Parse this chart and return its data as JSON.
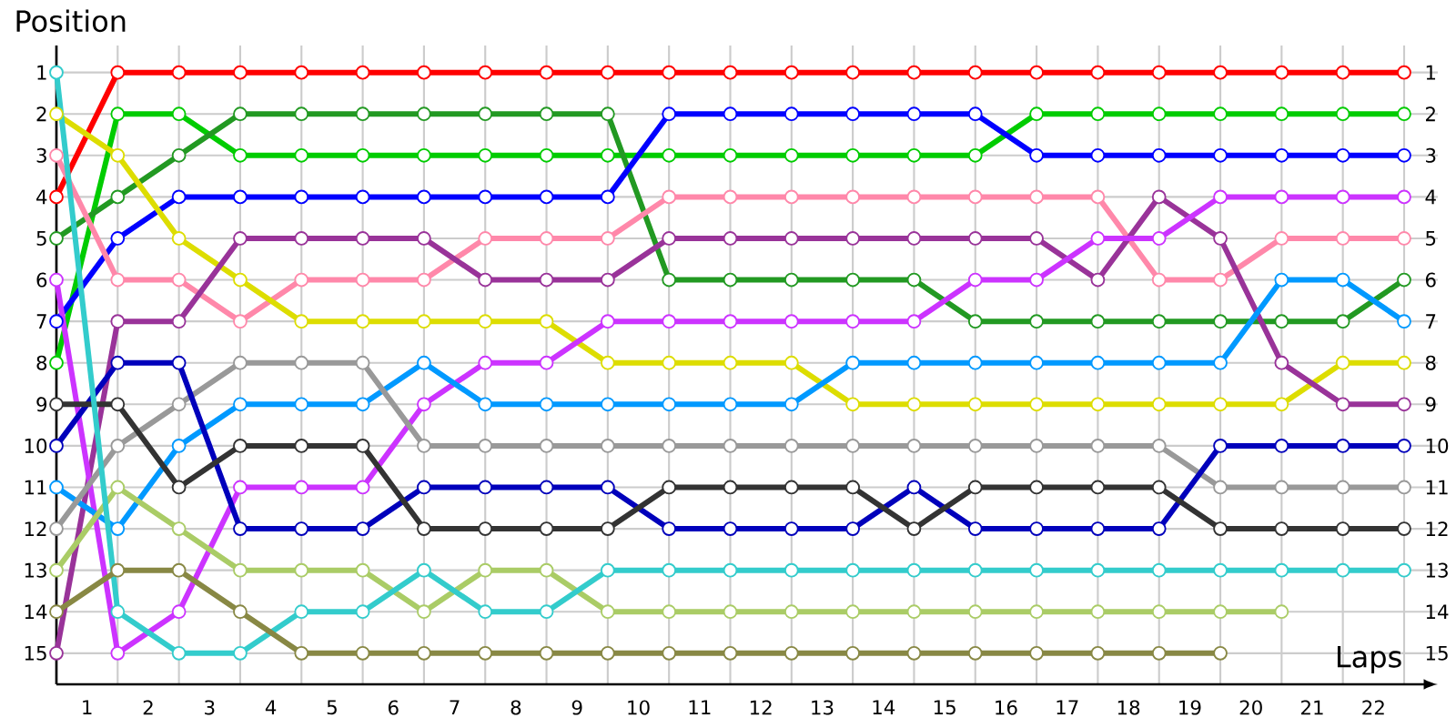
{
  "chart_data": {
    "type": "line",
    "xlabel": "Laps",
    "ylabel": "Position",
    "x": [
      0,
      1,
      2,
      3,
      4,
      5,
      6,
      7,
      8,
      9,
      10,
      11,
      12,
      13,
      14,
      15,
      16,
      17,
      18,
      19,
      20,
      21,
      22
    ],
    "xlim": [
      0,
      22.55
    ],
    "ylim": [
      15.75,
      0.35
    ],
    "y2lim": [
      15.75,
      0.35
    ],
    "xticks": [
      {
        "value": 0.5,
        "label": "1"
      },
      {
        "value": 1.5,
        "label": "2"
      },
      {
        "value": 2.5,
        "label": "3"
      },
      {
        "value": 3.5,
        "label": "4"
      },
      {
        "value": 4.5,
        "label": "5"
      },
      {
        "value": 5.5,
        "label": "6"
      },
      {
        "value": 6.5,
        "label": "7"
      },
      {
        "value": 7.5,
        "label": "8"
      },
      {
        "value": 8.5,
        "label": "9"
      },
      {
        "value": 9.5,
        "label": "10"
      },
      {
        "value": 10.5,
        "label": "11"
      },
      {
        "value": 11.5,
        "label": "12"
      },
      {
        "value": 12.5,
        "label": "13"
      },
      {
        "value": 13.5,
        "label": "14"
      },
      {
        "value": 14.5,
        "label": "15"
      },
      {
        "value": 15.5,
        "label": "16"
      },
      {
        "value": 16.5,
        "label": "17"
      },
      {
        "value": 17.5,
        "label": "18"
      },
      {
        "value": 18.5,
        "label": "19"
      },
      {
        "value": 19.5,
        "label": "20"
      },
      {
        "value": 20.5,
        "label": "21"
      },
      {
        "value": 21.5,
        "label": "22"
      },
      {
        "value": 1,
        "label": null
      },
      {
        "value": 2,
        "label": null
      },
      {
        "value": 3,
        "label": null
      },
      {
        "value": 4,
        "label": null
      },
      {
        "value": 5,
        "label": null
      },
      {
        "value": 6,
        "label": null
      },
      {
        "value": 7,
        "label": null
      },
      {
        "value": 8,
        "label": null
      },
      {
        "value": 9,
        "label": null
      },
      {
        "value": 10,
        "label": null
      },
      {
        "value": 11,
        "label": null
      },
      {
        "value": 12,
        "label": null
      },
      {
        "value": 13,
        "label": null
      },
      {
        "value": 14,
        "label": null
      },
      {
        "value": 15,
        "label": null
      },
      {
        "value": 16,
        "label": null
      },
      {
        "value": 17,
        "label": null
      },
      {
        "value": 18,
        "label": null
      },
      {
        "value": 19,
        "label": null
      },
      {
        "value": 20,
        "label": null
      },
      {
        "value": 21,
        "label": null
      },
      {
        "value": 22,
        "label": null
      }
    ],
    "yticks": [
      1,
      2,
      3,
      4,
      5,
      6,
      7,
      8,
      9,
      10,
      11,
      12,
      13,
      14,
      15
    ],
    "y2ticks": [
      1,
      2,
      3,
      4,
      5,
      6,
      7,
      8,
      9,
      10,
      11,
      12,
      13,
      14,
      15
    ],
    "grid": true,
    "marker": "circle",
    "line_style": "solid",
    "series": [
      {
        "color": "#ff0000",
        "values": [
          4,
          1,
          1,
          1,
          1,
          1,
          1,
          1,
          1,
          1,
          1,
          1,
          1,
          1,
          1,
          1,
          1,
          1,
          1,
          1,
          1,
          1,
          1
        ]
      },
      {
        "color": "#00cc00",
        "values": [
          8,
          2,
          2,
          3,
          3,
          3,
          3,
          3,
          3,
          3,
          3,
          3,
          3,
          3,
          3,
          3,
          2,
          2,
          2,
          2,
          2,
          2,
          2
        ]
      },
      {
        "color": "#229922",
        "values": [
          5,
          4,
          3,
          2,
          2,
          2,
          2,
          2,
          2,
          2,
          6,
          6,
          6,
          6,
          6,
          7,
          7,
          7,
          7,
          7,
          7,
          7,
          6
        ]
      },
      {
        "color": "#0000ff",
        "values": [
          7,
          5,
          4,
          4,
          4,
          4,
          4,
          4,
          4,
          4,
          2,
          2,
          2,
          2,
          2,
          2,
          3,
          3,
          3,
          3,
          3,
          3,
          3
        ]
      },
      {
        "color": "#ff88aa",
        "values": [
          3,
          6,
          6,
          7,
          6,
          6,
          6,
          5,
          5,
          5,
          4,
          4,
          4,
          4,
          4,
          4,
          4,
          4,
          6,
          6,
          5,
          5,
          5
        ]
      },
      {
        "color": "#dddd00",
        "values": [
          2,
          3,
          5,
          6,
          7,
          7,
          7,
          7,
          7,
          8,
          8,
          8,
          8,
          9,
          9,
          9,
          9,
          9,
          9,
          9,
          9,
          8,
          8
        ]
      },
      {
        "color": "#993399",
        "values": [
          15,
          7,
          7,
          5,
          5,
          5,
          5,
          6,
          6,
          6,
          5,
          5,
          5,
          5,
          5,
          5,
          5,
          6,
          4,
          5,
          8,
          9,
          9
        ]
      },
      {
        "color": "#cc33ff",
        "values": [
          6,
          15,
          14,
          11,
          11,
          11,
          9,
          8,
          8,
          7,
          7,
          7,
          7,
          7,
          7,
          6,
          6,
          5,
          5,
          4,
          4,
          4,
          4
        ]
      },
      {
        "color": "#0099ff",
        "values": [
          11,
          12,
          10,
          9,
          9,
          9,
          8,
          9,
          9,
          9,
          9,
          9,
          9,
          8,
          8,
          8,
          8,
          8,
          8,
          8,
          6,
          6,
          7
        ]
      },
      {
        "color": "#999999",
        "values": [
          12,
          10,
          9,
          8,
          8,
          8,
          10,
          10,
          10,
          10,
          10,
          10,
          10,
          10,
          10,
          10,
          10,
          10,
          10,
          11,
          11,
          11,
          11
        ]
      },
      {
        "color": "#0000bb",
        "values": [
          10,
          8,
          8,
          12,
          12,
          12,
          11,
          11,
          11,
          11,
          12,
          12,
          12,
          12,
          11,
          12,
          12,
          12,
          12,
          10,
          10,
          10,
          10
        ]
      },
      {
        "color": "#333333",
        "values": [
          9,
          9,
          11,
          10,
          10,
          10,
          12,
          12,
          12,
          12,
          11,
          11,
          11,
          11,
          12,
          11,
          11,
          11,
          11,
          12,
          12,
          12,
          12
        ]
      },
      {
        "color": "#aacc66",
        "values": [
          13,
          11,
          12,
          13,
          13,
          13,
          14,
          13,
          13,
          14,
          14,
          14,
          14,
          14,
          14,
          14,
          14,
          14,
          14,
          14,
          14,
          null,
          null
        ]
      },
      {
        "color": "#33cccc",
        "values": [
          1,
          14,
          15,
          15,
          14,
          14,
          13,
          14,
          14,
          13,
          13,
          13,
          13,
          13,
          13,
          13,
          13,
          13,
          13,
          13,
          13,
          13,
          13
        ]
      },
      {
        "color": "#888844",
        "values": [
          14,
          13,
          13,
          14,
          15,
          15,
          15,
          15,
          15,
          15,
          15,
          15,
          15,
          15,
          15,
          15,
          15,
          15,
          15,
          15,
          null,
          null,
          null
        ]
      }
    ]
  }
}
